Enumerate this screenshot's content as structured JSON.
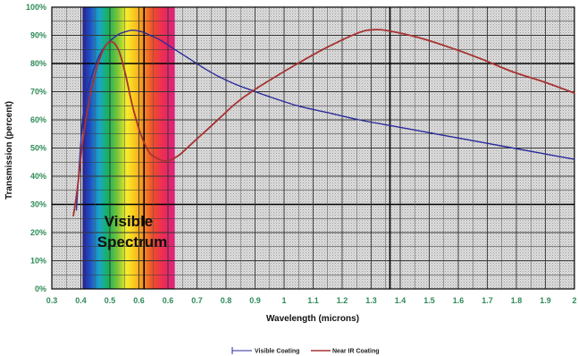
{
  "chart_data": {
    "type": "line",
    "xlabel": "Wavelength (microns)",
    "ylabel": "Transmission (percent)",
    "xlim": [
      0.3,
      2.0
    ],
    "ylim": [
      0,
      100
    ],
    "x_ticks": [
      "0.3",
      "0.4",
      "0.5",
      "0.6",
      "0.6",
      "0.7",
      "0.8",
      "0.9",
      "1",
      "1.1",
      "1.2",
      "1.3",
      "1.4",
      "1.5",
      "1.6",
      "1.7",
      "1.8",
      "1.9",
      "2"
    ],
    "y_ticks": [
      "0%",
      "10%",
      "20%",
      "30%",
      "40%",
      "50%",
      "60%",
      "70%",
      "80%",
      "90%",
      "100%"
    ],
    "grid": true,
    "legend_position": "bottom-center",
    "annotation": {
      "line1": "Visible",
      "line2": "Spectrum"
    },
    "visible_band_x": [
      0.4,
      0.7
    ],
    "series": [
      {
        "name": "Visible Coating",
        "color": "#2b2b9a",
        "x": [
          0.38,
          0.39,
          0.4,
          0.41,
          0.42,
          0.44,
          0.46,
          0.48,
          0.5,
          0.52,
          0.54,
          0.56,
          0.58,
          0.6,
          0.62,
          0.65,
          0.7,
          0.75,
          0.8,
          0.85,
          0.9,
          0.95,
          1.0,
          1.1,
          1.2,
          1.3,
          1.4,
          1.5,
          1.6,
          1.7,
          1.8,
          1.9,
          2.0
        ],
        "values": [
          28,
          45,
          60,
          68,
          72,
          79,
          84,
          87,
          89,
          90.5,
          91.3,
          91.8,
          91.6,
          91,
          90,
          88.5,
          85,
          81.5,
          78,
          75,
          72.5,
          70.5,
          68.5,
          65,
          62.5,
          60,
          58,
          56,
          54,
          52,
          50,
          48,
          46
        ]
      },
      {
        "name": "Near IR Coating",
        "color": "#a83232",
        "x": [
          0.37,
          0.38,
          0.39,
          0.4,
          0.42,
          0.44,
          0.46,
          0.48,
          0.5,
          0.52,
          0.54,
          0.56,
          0.58,
          0.6,
          0.62,
          0.64,
          0.66,
          0.68,
          0.7,
          0.72,
          0.75,
          0.8,
          0.85,
          0.9,
          0.95,
          1.0,
          1.1,
          1.2,
          1.3,
          1.35,
          1.4,
          1.5,
          1.6,
          1.7,
          1.8,
          1.9,
          2.0
        ],
        "values": [
          26,
          33,
          42,
          52,
          66,
          76,
          83,
          87,
          87.5,
          84,
          76,
          66,
          58,
          52,
          48,
          46.5,
          45.5,
          45.5,
          46.5,
          48,
          51,
          56,
          61,
          66,
          70,
          73.5,
          80,
          86,
          91,
          92,
          91.5,
          89,
          85.5,
          81.5,
          77,
          73.5,
          69.5
        ]
      }
    ]
  }
}
